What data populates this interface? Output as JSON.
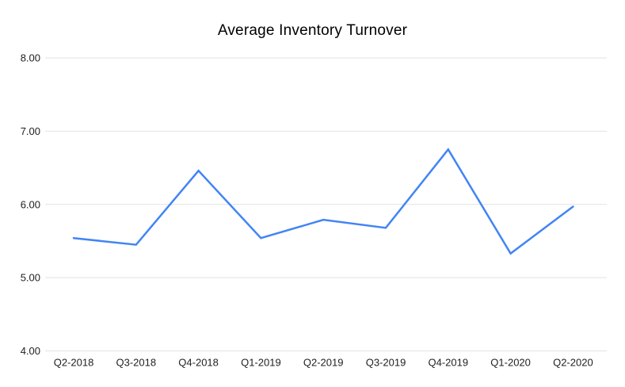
{
  "chart_data": {
    "type": "line",
    "title": "Average Inventory Turnover",
    "categories": [
      "Q2-2018",
      "Q3-2018",
      "Q4-2018",
      "Q1-2019",
      "Q2-2019",
      "Q3-2019",
      "Q4-2019",
      "Q1-2020",
      "Q2-2020"
    ],
    "values": [
      5.54,
      5.45,
      6.46,
      5.54,
      5.79,
      5.68,
      6.75,
      5.33,
      5.97
    ],
    "xlabel": "",
    "ylabel": "",
    "ylim": [
      4,
      8
    ],
    "y_tick_labels": [
      "8.00",
      "7.00",
      "6.00",
      "5.00",
      "4.00"
    ],
    "y_tick_values": [
      8,
      7,
      6,
      5,
      4
    ],
    "grid": "horizontal",
    "legend_position": "none",
    "colors": {
      "line": "#4285f4",
      "grid": "#e2e2e2",
      "axis_text": "#202124",
      "title_text": "#000000",
      "background": "#ffffff"
    }
  }
}
